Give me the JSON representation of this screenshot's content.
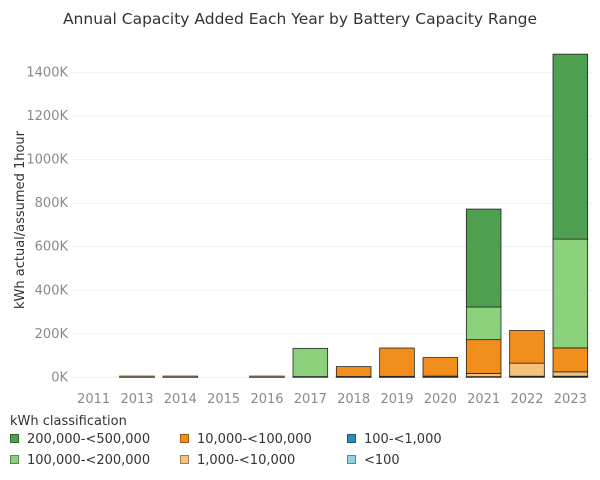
{
  "chart_data": {
    "type": "bar",
    "title": "Annual Capacity Added Each Year by Battery Capacity Range",
    "xlabel": "",
    "ylabel": "kWh actual/assumed 1hour",
    "ylim": [
      -40000,
      1550000
    ],
    "yticks": [
      0,
      200000,
      400000,
      600000,
      800000,
      1000000,
      1200000,
      1400000
    ],
    "ytick_labels": [
      "0K",
      "200K",
      "400K",
      "600K",
      "800K",
      "1000K",
      "1200K",
      "1400K"
    ],
    "grid": true,
    "legend": {
      "title": "kWh classification",
      "placement": "bottom"
    },
    "categories": [
      "2011",
      "2013",
      "2014",
      "2015",
      "2016",
      "2017",
      "2018",
      "2019",
      "2020",
      "2021",
      "2022",
      "2023"
    ],
    "series": [
      {
        "name": "<100",
        "color": "#8dd3e8",
        "values": [
          0,
          0,
          0,
          0,
          0,
          0,
          500,
          500,
          500,
          1000,
          2000,
          2000
        ]
      },
      {
        "name": "100-<1,000",
        "color": "#2b8cb8",
        "values": [
          0,
          0,
          0,
          0,
          0,
          0,
          500,
          1000,
          1000,
          2000,
          3000,
          3000
        ]
      },
      {
        "name": "1,000-<10,000",
        "color": "#f5c27a",
        "values": [
          0,
          1500,
          1500,
          0,
          3000,
          3000,
          3000,
          3000,
          4000,
          15000,
          60000,
          20000
        ]
      },
      {
        "name": "10,000-<100,000",
        "color": "#f28e1c",
        "values": [
          0,
          0,
          0,
          0,
          0,
          0,
          45000,
          130000,
          85000,
          155000,
          150000,
          110000
        ]
      },
      {
        "name": "100,000-<200,000",
        "color": "#8bd17c",
        "values": [
          0,
          0,
          0,
          0,
          0,
          130000,
          0,
          0,
          0,
          150000,
          0,
          500000
        ]
      },
      {
        "name": "200,000-<500,000",
        "color": "#4e9f50",
        "values": [
          0,
          0,
          0,
          0,
          0,
          0,
          0,
          0,
          0,
          450000,
          0,
          850000
        ]
      }
    ]
  },
  "legend_items": [
    {
      "label": "200,000-<500,000",
      "color": "#4e9f50"
    },
    {
      "label": "10,000-<100,000",
      "color": "#f28e1c"
    },
    {
      "label": "100-<1,000",
      "color": "#2b8cb8"
    },
    {
      "label": "100,000-<200,000",
      "color": "#8bd17c"
    },
    {
      "label": "1,000-<10,000",
      "color": "#f5c27a"
    },
    {
      "label": "<100",
      "color": "#8dd3e8"
    }
  ]
}
